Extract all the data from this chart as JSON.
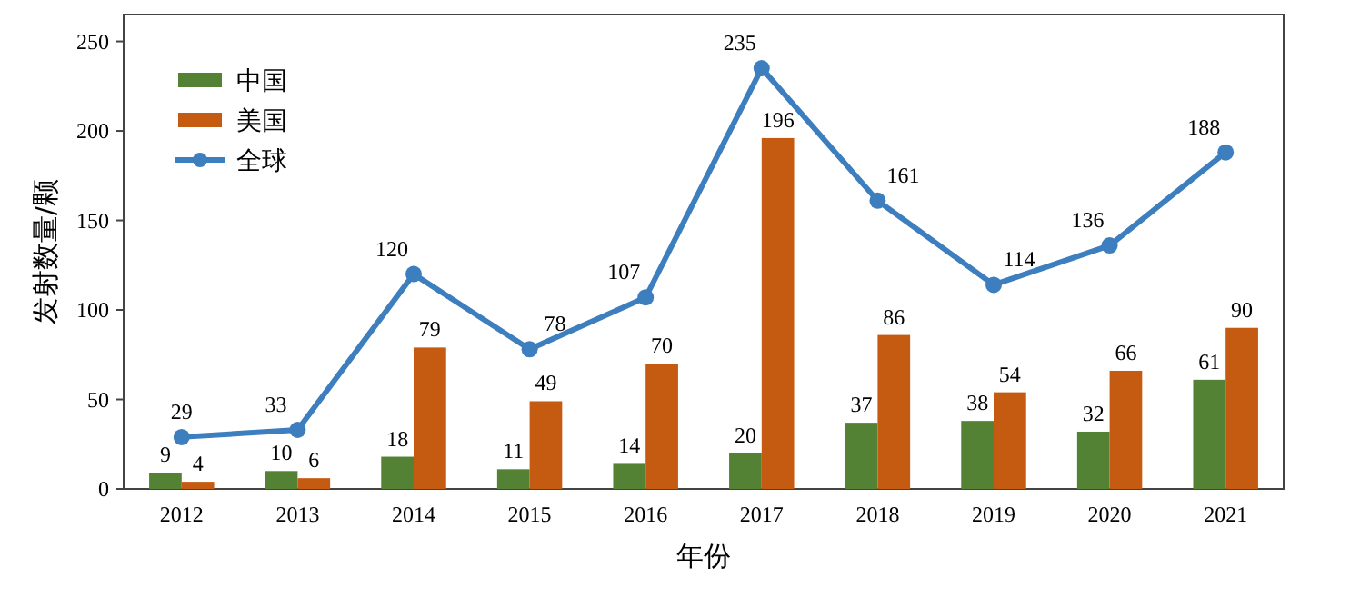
{
  "chart_data": {
    "type": "bar",
    "xlabel": "年份",
    "ylabel": "发射数量/颗",
    "categories": [
      "2012",
      "2013",
      "2014",
      "2015",
      "2016",
      "2017",
      "2018",
      "2019",
      "2020",
      "2021"
    ],
    "series": [
      {
        "name": "中国",
        "color": "#548235",
        "values": [
          9,
          10,
          18,
          11,
          14,
          20,
          37,
          38,
          32,
          61
        ]
      },
      {
        "name": "美国",
        "color": "#c55a11",
        "values": [
          4,
          6,
          79,
          49,
          70,
          196,
          86,
          54,
          66,
          90
        ]
      },
      {
        "name": "全球",
        "type": "line",
        "color": "#3d7ebf",
        "values": [
          29,
          33,
          120,
          78,
          107,
          235,
          161,
          114,
          136,
          188
        ]
      }
    ],
    "ylim": [
      0,
      265
    ],
    "yticks": [
      0,
      50,
      100,
      150,
      200,
      250
    ],
    "data_labels": true,
    "grid": false,
    "legend": "top left",
    "marker": "circle",
    "line_style": "solid"
  }
}
